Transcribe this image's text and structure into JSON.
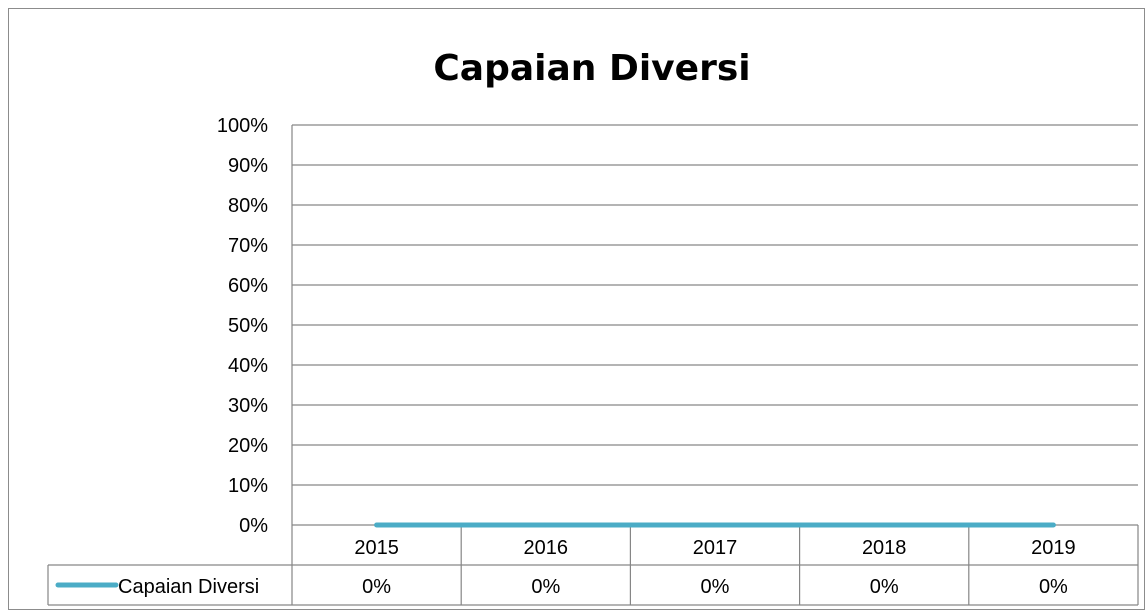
{
  "chart_data": {
    "type": "line",
    "title": "Capaian Diversi",
    "categories": [
      "2015",
      "2016",
      "2017",
      "2018",
      "2019"
    ],
    "series": [
      {
        "name": "Capaian Diversi",
        "values": [
          0,
          0,
          0,
          0,
          0
        ],
        "labels": [
          "0%",
          "0%",
          "0%",
          "0%",
          "0%"
        ],
        "color": "#4bacc6"
      }
    ],
    "ylim": [
      0,
      1
    ],
    "yticks": [
      "0%",
      "10%",
      "20%",
      "30%",
      "40%",
      "50%",
      "60%",
      "70%",
      "80%",
      "90%",
      "100%"
    ],
    "grid": true,
    "legend": "data-table",
    "gridline_color": "#868686"
  }
}
